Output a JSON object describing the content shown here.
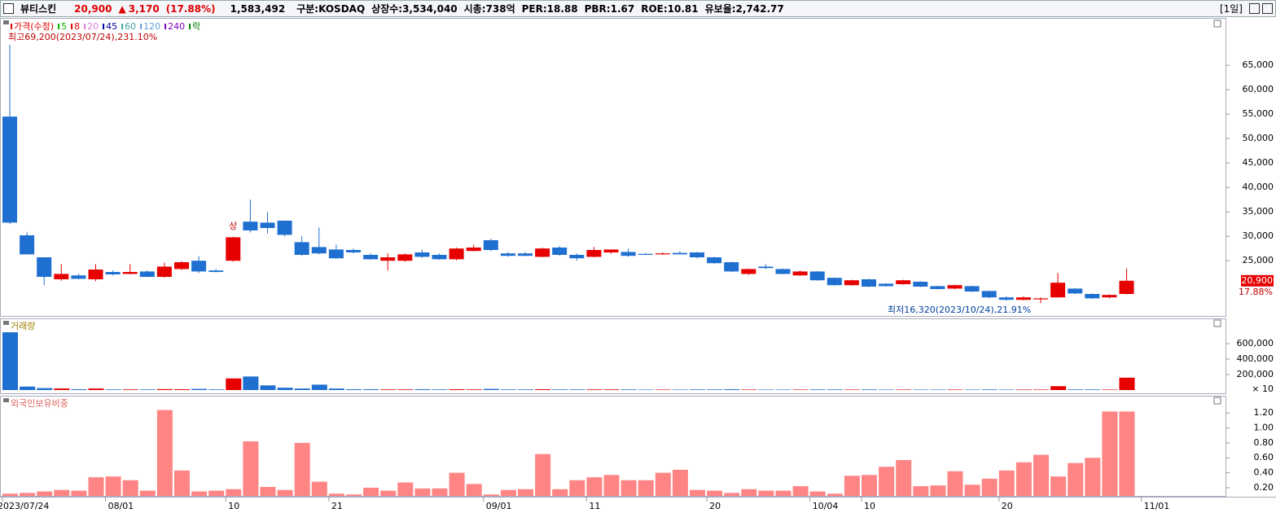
{
  "header": {
    "name": "뷰티스킨",
    "price": "20,900",
    "arrow": "▲",
    "change": "3,170",
    "change_pct": "(17.88%)",
    "volume": "1,583,492",
    "market": "구분:KOSDAQ",
    "shares": "상장수:3,534,040",
    "cap": "시총:738억",
    "per": "PER:18.88",
    "pbr": "PBR:1.67",
    "roe": "ROE:10.81",
    "reserve": "유보율:2,742.77",
    "period": "[1일]"
  },
  "chart_data": [
    {
      "type": "candlestick",
      "legend": [
        {
          "name": "가격(수정)",
          "color": "#e00000"
        },
        {
          "name": "5",
          "color": "#00b000"
        },
        {
          "name": "8",
          "color": "#e00000"
        },
        {
          "name": "20",
          "color": "#e080e0"
        },
        {
          "name": "45",
          "color": "#0000a0"
        },
        {
          "name": "60",
          "color": "#40a0a0"
        },
        {
          "name": "120",
          "color": "#60a0e0"
        },
        {
          "name": "240",
          "color": "#8000c0"
        },
        {
          "name": "락",
          "color": "#008000"
        }
      ],
      "high_annotation": "최고69,200(2023/07/24),231.10%",
      "low_annotation": "최저16,320(2023/10/24),21.91%",
      "marker": "상",
      "last_label": "20,900",
      "last_change": "17.88%",
      "up_color": "#e60000",
      "down_color": "#1f6fd1",
      "ylim": [
        13700,
        74700
      ],
      "yticks": [
        {
          "value": 25000,
          "label": "25,000"
        },
        {
          "value": 30000,
          "label": "30,000"
        },
        {
          "value": 35000,
          "label": "35,000"
        },
        {
          "value": 40000,
          "label": "40,000"
        },
        {
          "value": 45000,
          "label": "45,000"
        },
        {
          "value": 50000,
          "label": "50,000"
        },
        {
          "value": 55000,
          "label": "55,000"
        },
        {
          "value": 60000,
          "label": "60,000"
        },
        {
          "value": 65000,
          "label": "65,000"
        }
      ],
      "open": [
        54500,
        30200,
        25700,
        21200,
        22000,
        21200,
        22700,
        22300,
        22800,
        21700,
        23300,
        25000,
        23000,
        25000,
        33000,
        32800,
        33200,
        28800,
        27800,
        27300,
        27200,
        26200,
        25000,
        25000,
        26700,
        26200,
        25300,
        27000,
        29200,
        26500,
        26500,
        25800,
        27700,
        26200,
        25800,
        26700,
        26800,
        26400,
        26300,
        26600,
        26700,
        25700,
        24700,
        22300,
        23800,
        23300,
        22000,
        22800,
        21500,
        20000,
        21200,
        20300,
        20200,
        20700,
        19800,
        19300,
        19800,
        18800,
        17500,
        17000,
        17100,
        17500,
        19300,
        18200,
        17500,
        18200
      ],
      "high": [
        69200,
        30800,
        25700,
        24300,
        22300,
        24300,
        23000,
        24300,
        23000,
        24600,
        24900,
        25900,
        23300,
        29900,
        37500,
        35000,
        33200,
        30000,
        31800,
        28300,
        27500,
        26500,
        26500,
        26500,
        27300,
        26500,
        27700,
        28300,
        29500,
        26800,
        26800,
        27700,
        28000,
        26500,
        27800,
        27300,
        27500,
        26600,
        26700,
        27000,
        26800,
        25800,
        24800,
        23400,
        24300,
        23400,
        23000,
        22900,
        21600,
        21100,
        21300,
        20400,
        21100,
        20800,
        19900,
        20100,
        19900,
        18900,
        17700,
        17700,
        17500,
        22500,
        19400,
        18300,
        18100,
        23400
      ],
      "low": [
        32500,
        26300,
        20000,
        20900,
        21200,
        20800,
        22000,
        22200,
        21600,
        21500,
        23100,
        22500,
        22600,
        24800,
        30800,
        30600,
        30000,
        26000,
        26300,
        25400,
        26500,
        25200,
        23000,
        24800,
        25600,
        25200,
        25100,
        26900,
        27000,
        25800,
        25900,
        25700,
        26000,
        25000,
        25700,
        26400,
        25800,
        26200,
        26200,
        26400,
        25500,
        24400,
        22700,
        22100,
        23300,
        22200,
        21900,
        20900,
        19900,
        19900,
        19600,
        19700,
        20100,
        19600,
        19100,
        19200,
        18600,
        17300,
        16800,
        16900,
        16320,
        17400,
        18200,
        17200,
        17300,
        18100
      ],
      "close": [
        32800,
        26300,
        21700,
        22300,
        21300,
        23200,
        22200,
        22700,
        21700,
        23800,
        24700,
        22800,
        22700,
        29800,
        31200,
        31700,
        30300,
        26200,
        26500,
        25500,
        26700,
        25300,
        25700,
        26300,
        25800,
        25300,
        27500,
        27700,
        27200,
        26000,
        26000,
        27500,
        26200,
        25500,
        27200,
        27300,
        26000,
        26200,
        26500,
        26300,
        25700,
        24500,
        22800,
        23300,
        23500,
        22300,
        22800,
        21000,
        20000,
        21000,
        19700,
        19800,
        21000,
        19700,
        19200,
        20000,
        18700,
        17500,
        17000,
        17500,
        17300,
        20500,
        18300,
        17300,
        18000,
        20900
      ]
    },
    {
      "type": "bar",
      "title": "거래량",
      "unit": "× 10",
      "up_color": "#e60000",
      "down_color": "#1f6fd1",
      "ylim": [
        -52600,
        915800
      ],
      "yticks": [
        {
          "value": 200000,
          "label": "200,000"
        },
        {
          "value": 400000,
          "label": "400,000"
        },
        {
          "value": 600000,
          "label": "600,000"
        }
      ],
      "values": [
        747000,
        45000,
        25000,
        20000,
        10000,
        20000,
        8000,
        8000,
        8000,
        12000,
        10000,
        15000,
        8000,
        150000,
        175000,
        60000,
        30000,
        20000,
        70000,
        20000,
        10000,
        10000,
        8000,
        8000,
        10000,
        8000,
        10000,
        8000,
        15000,
        8000,
        8000,
        10000,
        8000,
        8000,
        8000,
        8000,
        8000,
        6000,
        6000,
        6000,
        8000,
        8000,
        10000,
        6000,
        6000,
        6000,
        6000,
        8000,
        8000,
        6000,
        8000,
        6000,
        6000,
        6000,
        6000,
        6000,
        6000,
        8000,
        6000,
        6000,
        6000,
        50000,
        8000,
        8000,
        6000,
        160000
      ]
    },
    {
      "type": "bar",
      "title": "외국인보유비중",
      "color": "#ff8585",
      "ylim": [
        0.09,
        1.42
      ],
      "yticks": [
        {
          "value": 0.2,
          "label": "0.20"
        },
        {
          "value": 0.4,
          "label": "0.40"
        },
        {
          "value": 0.6,
          "label": "0.60"
        },
        {
          "value": 0.8,
          "label": "0.80"
        },
        {
          "value": 1.0,
          "label": "1.00"
        },
        {
          "value": 1.2,
          "label": "1.20"
        }
      ],
      "categories": [
        "2023/07/24",
        null,
        null,
        null,
        null,
        null,
        "08/01",
        null,
        null,
        null,
        null,
        null,
        null,
        "10",
        null,
        null,
        null,
        null,
        null,
        "21",
        null,
        null,
        null,
        null,
        null,
        null,
        null,
        null,
        "09/01",
        null,
        null,
        null,
        null,
        null,
        "11",
        null,
        null,
        null,
        null,
        null,
        null,
        "20",
        null,
        null,
        null,
        null,
        null,
        "10/04",
        null,
        null,
        "10",
        null,
        null,
        null,
        null,
        null,
        null,
        null,
        "20",
        null,
        null,
        null,
        null,
        null,
        null,
        null
      ],
      "end_label": "11/01",
      "values": [
        0.12,
        0.13,
        0.15,
        0.17,
        0.16,
        0.34,
        0.35,
        0.3,
        0.16,
        1.24,
        0.43,
        0.15,
        0.16,
        0.18,
        0.82,
        0.21,
        0.17,
        0.8,
        0.28,
        0.12,
        0.11,
        0.2,
        0.16,
        0.27,
        0.19,
        0.19,
        0.4,
        0.25,
        0.11,
        0.17,
        0.18,
        0.65,
        0.18,
        0.3,
        0.34,
        0.37,
        0.3,
        0.3,
        0.4,
        0.44,
        0.17,
        0.16,
        0.13,
        0.18,
        0.16,
        0.16,
        0.22,
        0.15,
        0.12,
        0.36,
        0.37,
        0.48,
        0.57,
        0.22,
        0.23,
        0.42,
        0.24,
        0.32,
        0.43,
        0.54,
        0.64,
        0.35,
        0.53,
        0.6,
        1.22,
        1.22
      ]
    }
  ]
}
